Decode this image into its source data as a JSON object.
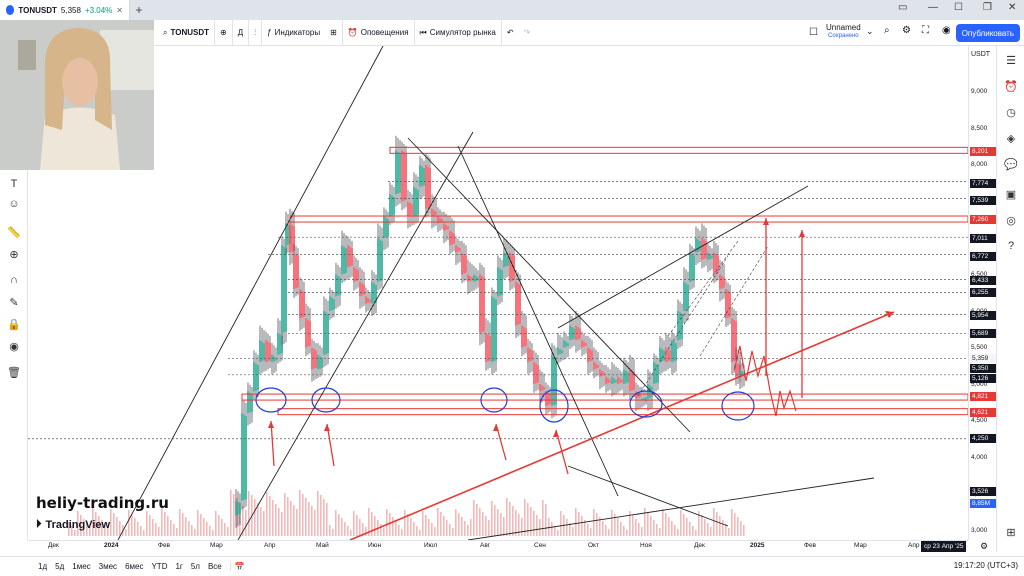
{
  "tab": {
    "symbol": "TONUSDT",
    "price": "5,358",
    "change": "+3.04%"
  },
  "toolbar": {
    "symbol": "TONUSDT",
    "interval": "Д",
    "indicators": "Индикаторы",
    "alerts": "Оповещения",
    "replay": "Симулятор рынка",
    "layout_name": "Unnamed",
    "layout_status": "Сохранено",
    "publish": "Опубликовать"
  },
  "price_axis": {
    "currency": "USDT",
    "ticks": [
      "9,000",
      "8,500",
      "8,000",
      "7,500",
      "7,000",
      "6,500",
      "6,000",
      "5,500",
      "5,000",
      "4,500",
      "4,000",
      "3,500",
      "3,000"
    ],
    "tags": [
      {
        "value": "8,201",
        "style": "red"
      },
      {
        "value": "7,774",
        "style": "dark"
      },
      {
        "value": "7,539",
        "style": "dark"
      },
      {
        "value": "7,260",
        "style": "red"
      },
      {
        "value": "7,011",
        "style": "dark"
      },
      {
        "value": "6,772",
        "style": "dark"
      },
      {
        "value": "6,433",
        "style": "dark"
      },
      {
        "value": "6,255",
        "style": "dark"
      },
      {
        "value": "5,954",
        "style": "dark"
      },
      {
        "value": "5,689",
        "style": "dark"
      },
      {
        "value": "5,359",
        "style": "last"
      },
      {
        "value": "5,350",
        "style": "dark"
      },
      {
        "value": "5,126",
        "style": "dark"
      },
      {
        "value": "4,821",
        "style": "red"
      },
      {
        "value": "4,621",
        "style": "red"
      },
      {
        "value": "4,250",
        "style": "dark"
      },
      {
        "value": "3,526",
        "style": "dark"
      },
      {
        "value": "8,85M",
        "style": "blue"
      }
    ]
  },
  "time_axis": {
    "labels": [
      "Дек",
      "2024",
      "Фев",
      "Мар",
      "Апр",
      "Май",
      "Июн",
      "Июл",
      "Авг",
      "Сен",
      "Окт",
      "Ноя",
      "Дек",
      "2025",
      "Фев",
      "Мар",
      "Апр"
    ],
    "cursor_date": "ср 23 Апр '25"
  },
  "ranges": [
    "1д",
    "5д",
    "1мес",
    "3мес",
    "6мес",
    "YTD",
    "1г",
    "5л",
    "Все"
  ],
  "clock": "19:17:20 (UTC+3)",
  "watermark": "heliy-trading.ru",
  "brand": "TradingView",
  "colors": {
    "accent": "#2962ff",
    "level": "#e53935",
    "up": "#089981",
    "down": "#f23645"
  }
}
